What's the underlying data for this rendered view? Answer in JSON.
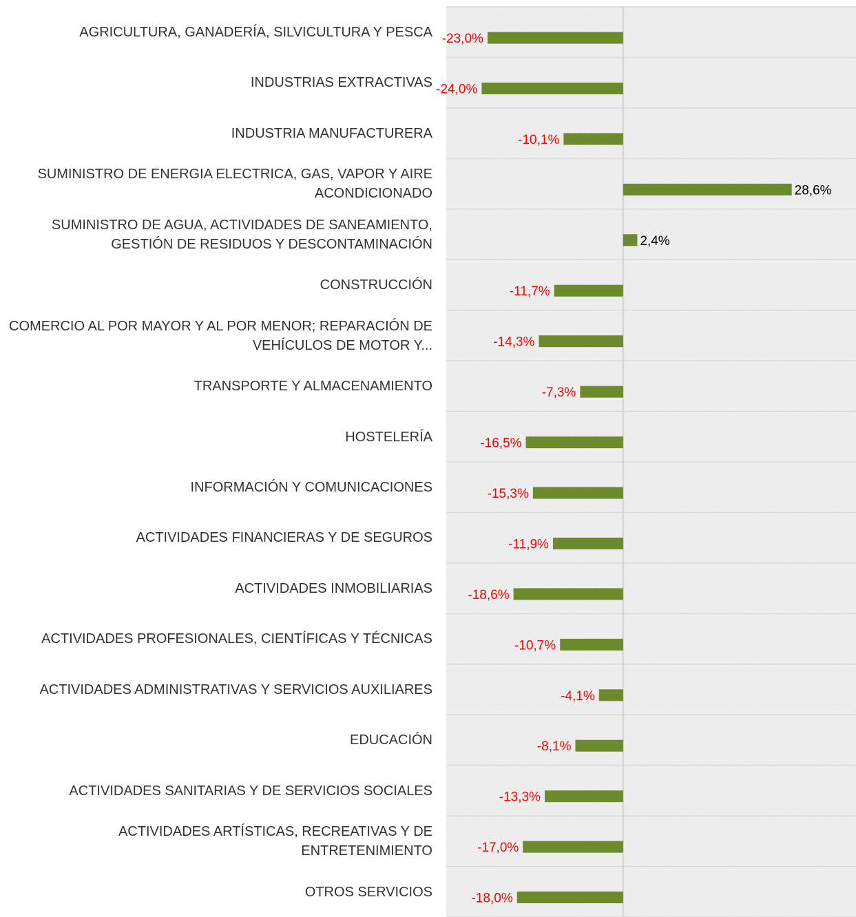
{
  "chart_data": {
    "type": "bar",
    "orientation": "horizontal",
    "categories": [
      "AGRICULTURA, GANADERÍA, SILVICULTURA Y PESCA",
      "INDUSTRIAS EXTRACTIVAS",
      "INDUSTRIA MANUFACTURERA",
      "SUMINISTRO DE ENERGIA ELECTRICA, GAS, VAPOR Y AIRE ACONDICIONADO",
      "SUMINISTRO DE AGUA, ACTIVIDADES DE SANEAMIENTO, GESTIÓN DE RESIDUOS Y DESCONTAMINACIÓN",
      "CONSTRUCCIÓN",
      "COMERCIO AL POR MAYOR Y AL POR MENOR; REPARACIÓN DE VEHÍCULOS DE MOTOR Y...",
      "TRANSPORTE Y ALMACENAMIENTO",
      "HOSTELERÍA",
      "INFORMACIÓN Y COMUNICACIONES",
      "ACTIVIDADES FINANCIERAS Y DE SEGUROS",
      "ACTIVIDADES INMOBILIARIAS",
      "ACTIVIDADES PROFESIONALES, CIENTÍFICAS Y TÉCNICAS",
      "ACTIVIDADES ADMINISTRATIVAS Y SERVICIOS AUXILIARES",
      "EDUCACIÓN",
      "ACTIVIDADES SANITARIAS Y DE SERVICIOS SOCIALES",
      "ACTIVIDADES ARTÍSTICAS, RECREATIVAS Y DE ENTRETENIMIENTO",
      "OTROS SERVICIOS"
    ],
    "values": [
      -23.0,
      -24.0,
      -10.1,
      28.6,
      2.4,
      -11.7,
      -14.3,
      -7.3,
      -16.5,
      -15.3,
      -11.9,
      -18.6,
      -10.7,
      -4.1,
      -8.1,
      -13.3,
      -17.0,
      -18.0
    ],
    "value_labels": [
      "-23,0%",
      "-24,0%",
      "-10,1%",
      "28,6%",
      "2,4%",
      "-11,7%",
      "-14,3%",
      "-7,3%",
      "-16,5%",
      "-15,3%",
      "-11,9%",
      "-18,6%",
      "-10,7%",
      "-4,1%",
      "-8,1%",
      "-13,3%",
      "-17,0%",
      "-18,0%"
    ],
    "color": "#6b8b2c",
    "negative_label_color": "#ff0000",
    "positive_label_color": "#000000",
    "xlim": [
      -30,
      39.5
    ],
    "grid": true
  }
}
